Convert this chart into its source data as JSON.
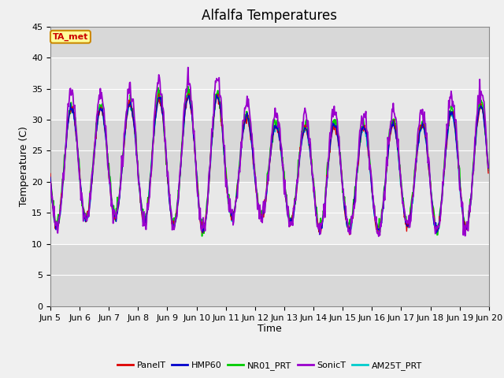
{
  "title": "Alfalfa Temperatures",
  "xlabel": "Time",
  "ylabel": "Temperature (C)",
  "ylim": [
    0,
    45
  ],
  "yticks": [
    0,
    5,
    10,
    15,
    20,
    25,
    30,
    35,
    40,
    45
  ],
  "background_color": "#f0f0f0",
  "plot_bg_bands": [
    {
      "ymin": 0,
      "ymax": 10,
      "color": "#d8d8d8"
    },
    {
      "ymin": 10,
      "ymax": 20,
      "color": "#e8e8e8"
    },
    {
      "ymin": 20,
      "ymax": 30,
      "color": "#d8d8d8"
    },
    {
      "ymin": 30,
      "ymax": 40,
      "color": "#e8e8e8"
    },
    {
      "ymin": 40,
      "ymax": 45,
      "color": "#d8d8d8"
    }
  ],
  "series": {
    "PanelT": {
      "color": "#dd0000",
      "lw": 1.0,
      "zorder": 4
    },
    "HMP60": {
      "color": "#0000cc",
      "lw": 1.0,
      "zorder": 5
    },
    "NR01_PRT": {
      "color": "#00cc00",
      "lw": 1.2,
      "zorder": 3
    },
    "SonicT": {
      "color": "#9900cc",
      "lw": 1.3,
      "zorder": 6
    },
    "AM25T_PRT": {
      "color": "#00cccc",
      "lw": 1.2,
      "zorder": 3
    }
  },
  "annotation_text": "TA_met",
  "annotation_color": "#cc0000",
  "annotation_bg": "#ffff99",
  "annotation_border": "#cc8800",
  "grid_color": "#ffffff",
  "num_days": 15,
  "start_day": 5
}
